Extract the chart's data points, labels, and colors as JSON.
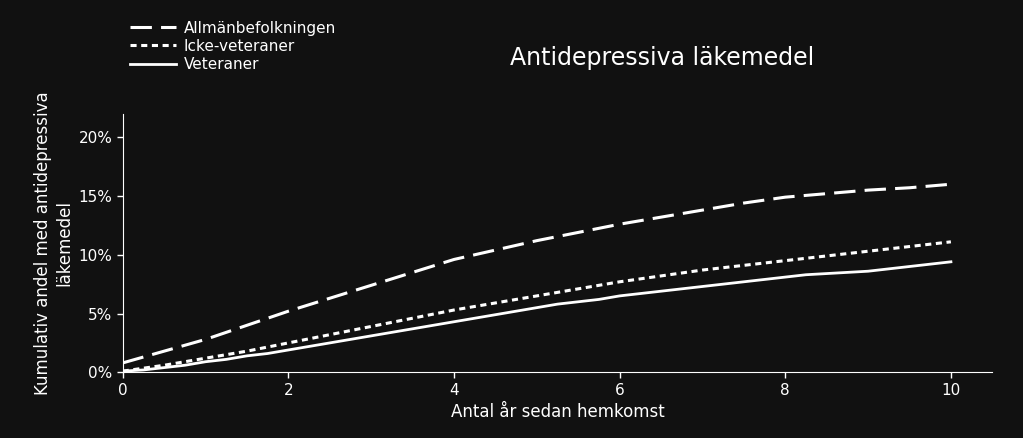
{
  "title": "Antidepressiva läkemedel",
  "xlabel": "Antal år sedan hemkomst",
  "ylabel": "Kumulativ andel med antidepressiva\nläkemedel",
  "background_color": "#111111",
  "text_color": "#ffffff",
  "xlim": [
    0,
    10.5
  ],
  "ylim": [
    0,
    0.22
  ],
  "xticks": [
    0,
    2,
    4,
    6,
    8,
    10
  ],
  "yticks": [
    0.0,
    0.05,
    0.1,
    0.15,
    0.2
  ],
  "ytick_labels": [
    "0%",
    "5%",
    "10%",
    "15%",
    "20%"
  ],
  "series": [
    {
      "label": "Allmänbefolkningen",
      "linestyle": "dashed",
      "linewidth": 2.2,
      "color": "#ffffff",
      "x": [
        0,
        0.5,
        1,
        1.5,
        2,
        2.5,
        3,
        3.5,
        4,
        4.5,
        5,
        5.5,
        6,
        6.5,
        7,
        7.5,
        8,
        8.5,
        9,
        9.5,
        10
      ],
      "y": [
        0.008,
        0.018,
        0.028,
        0.04,
        0.052,
        0.063,
        0.074,
        0.085,
        0.096,
        0.104,
        0.112,
        0.119,
        0.126,
        0.132,
        0.138,
        0.144,
        0.149,
        0.152,
        0.155,
        0.157,
        0.16
      ]
    },
    {
      "label": "Icke-veteraner",
      "linestyle": "dotted",
      "linewidth": 2.2,
      "color": "#ffffff",
      "x": [
        0,
        0.5,
        1,
        1.5,
        2,
        2.5,
        3,
        3.5,
        4,
        4.5,
        5,
        5.5,
        6,
        6.5,
        7,
        7.5,
        8,
        8.5,
        9,
        9.5,
        10
      ],
      "y": [
        0.001,
        0.006,
        0.012,
        0.018,
        0.025,
        0.032,
        0.039,
        0.046,
        0.053,
        0.059,
        0.065,
        0.071,
        0.077,
        0.082,
        0.087,
        0.091,
        0.095,
        0.099,
        0.103,
        0.107,
        0.111
      ]
    },
    {
      "label": "Veteraner",
      "linestyle": "solid",
      "linewidth": 2.0,
      "color": "#ffffff",
      "x": [
        0,
        0.25,
        0.5,
        0.75,
        1,
        1.25,
        1.5,
        1.75,
        2,
        2.25,
        2.5,
        2.75,
        3,
        3.25,
        3.5,
        3.75,
        4,
        4.25,
        4.5,
        4.75,
        5,
        5.25,
        5.5,
        5.75,
        6,
        6.25,
        6.5,
        6.75,
        7,
        7.25,
        7.5,
        7.75,
        8,
        8.25,
        8.5,
        8.75,
        9,
        9.25,
        9.5,
        9.75,
        10
      ],
      "y": [
        0.001,
        0.002,
        0.004,
        0.006,
        0.009,
        0.011,
        0.014,
        0.016,
        0.019,
        0.022,
        0.025,
        0.028,
        0.031,
        0.034,
        0.037,
        0.04,
        0.043,
        0.046,
        0.049,
        0.052,
        0.055,
        0.058,
        0.06,
        0.062,
        0.065,
        0.067,
        0.069,
        0.071,
        0.073,
        0.075,
        0.077,
        0.079,
        0.081,
        0.083,
        0.084,
        0.085,
        0.086,
        0.088,
        0.09,
        0.092,
        0.094
      ]
    }
  ],
  "legend_labels": [
    "Allmänbefolkningen",
    "Icke-veteraner",
    "Veteraner"
  ],
  "title_fontsize": 17,
  "axis_label_fontsize": 12,
  "tick_fontsize": 11,
  "legend_fontsize": 11
}
